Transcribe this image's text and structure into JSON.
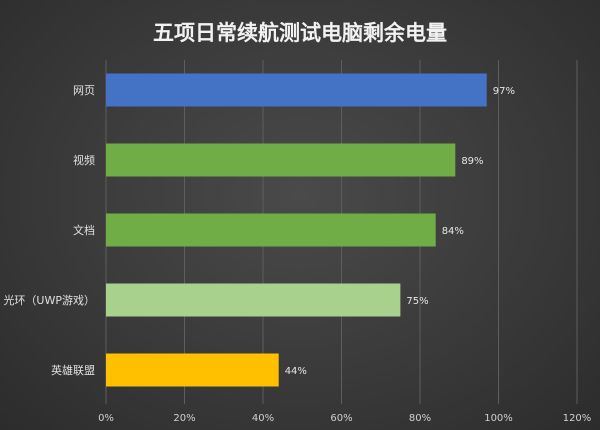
{
  "chart_data": {
    "type": "bar",
    "orientation": "horizontal",
    "title": "五项日常续航测试电脑剩余电量",
    "xlabel": "",
    "ylabel": "",
    "xlim": [
      0,
      120
    ],
    "x_ticks": [
      0,
      20,
      40,
      60,
      80,
      100,
      120
    ],
    "x_tick_labels": [
      "0%",
      "20%",
      "40%",
      "60%",
      "80%",
      "100%",
      "120%"
    ],
    "grid": true,
    "legend": "none",
    "categories": [
      "网页",
      "视频",
      "文档",
      "光环（UWP游戏）",
      "英雄联盟"
    ],
    "values": [
      97,
      89,
      84,
      75,
      44
    ],
    "value_labels": [
      "97%",
      "89%",
      "84%",
      "75%",
      "44%"
    ],
    "colors": [
      "#4472C4",
      "#70AD47",
      "#70AD47",
      "#A9D18E",
      "#FFC000"
    ]
  }
}
